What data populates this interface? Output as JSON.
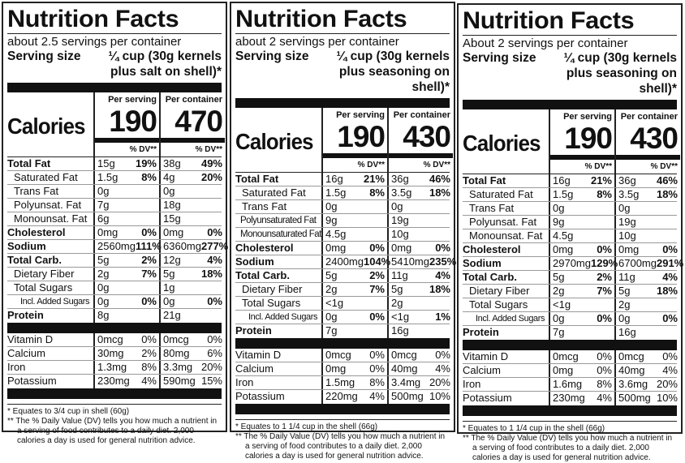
{
  "labels": [
    {
      "title": "Nutrition Facts",
      "servings": "about 2.5 servings per container",
      "serving_size_label": "Serving size",
      "serving_size_value": "¼ cup (30g kernels plus salt on shell)*",
      "calories_label": "Calories",
      "per_serving_label": "Per serving",
      "per_container_label": "Per container",
      "calories_serving": "190",
      "calories_container": "470",
      "dv_label": "% DV**",
      "rows": [
        {
          "name": "Total Fat",
          "style": "b",
          "s": "15g",
          "sp": "19%",
          "c": "38g",
          "cp": "49%"
        },
        {
          "name": "Saturated Fat",
          "style": "i1",
          "s": "1.5g",
          "sp": "8%",
          "c": "4g",
          "cp": "20%"
        },
        {
          "name": "Trans Fat",
          "style": "i1",
          "s": "0g",
          "sp": "",
          "c": "0g",
          "cp": ""
        },
        {
          "name": "Polyunsat. Fat",
          "style": "i1",
          "s": "7g",
          "sp": "",
          "c": "18g",
          "cp": ""
        },
        {
          "name": "Monounsat. Fat",
          "style": "i1",
          "s": "6g",
          "sp": "",
          "c": "15g",
          "cp": ""
        },
        {
          "name": "Cholesterol",
          "style": "b",
          "s": "0mg",
          "sp": "0%",
          "c": "0mg",
          "cp": "0%"
        },
        {
          "name": "Sodium",
          "style": "b",
          "s": "2560mg",
          "sp": "111%",
          "c": "6360mg",
          "cp": "277%"
        },
        {
          "name": "Total Carb.",
          "style": "b",
          "s": "5g",
          "sp": "2%",
          "c": "12g",
          "cp": "4%"
        },
        {
          "name": "Dietary Fiber",
          "style": "i1",
          "s": "2g",
          "sp": "7%",
          "c": "5g",
          "cp": "18%"
        },
        {
          "name": "Total Sugars",
          "style": "i1",
          "s": "0g",
          "sp": "",
          "c": "1g",
          "cp": ""
        },
        {
          "name": "Incl. Added Sugars",
          "style": "i2",
          "s": "0g",
          "sp": "0%",
          "c": "0g",
          "cp": "0%"
        },
        {
          "name": "Protein",
          "style": "b",
          "s": "8g",
          "sp": "",
          "c": "21g",
          "cp": ""
        }
      ],
      "vitamins": [
        {
          "name": "Vitamin D",
          "s": "0mcg",
          "sp": "0%",
          "c": "0mcg",
          "cp": "0%"
        },
        {
          "name": "Calcium",
          "s": "30mg",
          "sp": "2%",
          "c": "80mg",
          "cp": "6%"
        },
        {
          "name": "Iron",
          "s": "1.3mg",
          "sp": "8%",
          "c": "3.3mg",
          "cp": "20%"
        },
        {
          "name": "Potassium",
          "s": "230mg",
          "sp": "4%",
          "c": "590mg",
          "cp": "15%"
        }
      ],
      "footnote1": "* Equates to 3/4 cup in shell (60g)",
      "footnote2": "** The % Daily Value (DV) tells you how much a nutrient in a serving of food contributes to a daily diet. 2,000 calories a day is used for general nutrition advice."
    },
    {
      "title": "Nutrition Facts",
      "servings": "about 2 servings per container",
      "serving_size_label": "Serving size",
      "serving_size_value": "¼ cup (30g kernels plus seasoning on shell)*",
      "calories_label": "Calories",
      "per_serving_label": "Per serving",
      "per_container_label": "Per container",
      "calories_serving": "190",
      "calories_container": "430",
      "dv_label": "% DV**",
      "rows": [
        {
          "name": "Total Fat",
          "style": "b",
          "s": "16g",
          "sp": "21%",
          "c": "36g",
          "cp": "46%"
        },
        {
          "name": "Saturated Fat",
          "style": "i1",
          "s": "1.5g",
          "sp": "8%",
          "c": "3.5g",
          "cp": "18%"
        },
        {
          "name": "Trans Fat",
          "style": "i1",
          "s": "0g",
          "sp": "",
          "c": "0g",
          "cp": ""
        },
        {
          "name": "Polyunsaturated Fat",
          "style": "sq",
          "s": "9g",
          "sp": "",
          "c": "19g",
          "cp": ""
        },
        {
          "name": "Monounsaturated Fat",
          "style": "sq",
          "s": "4.5g",
          "sp": "",
          "c": "10g",
          "cp": ""
        },
        {
          "name": "Cholesterol",
          "style": "b",
          "s": "0mg",
          "sp": "0%",
          "c": "0mg",
          "cp": "0%"
        },
        {
          "name": "Sodium",
          "style": "b",
          "s": "2400mg",
          "sp": "104%",
          "c": "5410mg",
          "cp": "235%"
        },
        {
          "name": "Total Carb.",
          "style": "b",
          "s": "5g",
          "sp": "2%",
          "c": "11g",
          "cp": "4%"
        },
        {
          "name": "Dietary Fiber",
          "style": "i1",
          "s": "2g",
          "sp": "7%",
          "c": "5g",
          "cp": "18%"
        },
        {
          "name": "Total Sugars",
          "style": "i1",
          "s": "<1g",
          "sp": "",
          "c": "2g",
          "cp": ""
        },
        {
          "name": "Incl. Added Sugars",
          "style": "i2",
          "s": "0g",
          "sp": "0%",
          "c": "<1g",
          "cp": "1%"
        },
        {
          "name": "Protein",
          "style": "b",
          "s": "7g",
          "sp": "",
          "c": "16g",
          "cp": ""
        }
      ],
      "vitamins": [
        {
          "name": "Vitamin D",
          "s": "0mcg",
          "sp": "0%",
          "c": "0mcg",
          "cp": "0%"
        },
        {
          "name": "Calcium",
          "s": "0mg",
          "sp": "0%",
          "c": "40mg",
          "cp": "4%"
        },
        {
          "name": "Iron",
          "s": "1.5mg",
          "sp": "8%",
          "c": "3.4mg",
          "cp": "20%"
        },
        {
          "name": "Potassium",
          "s": "220mg",
          "sp": "4%",
          "c": "500mg",
          "cp": "10%"
        }
      ],
      "footnote1": "* Equates to 1 1/4 cup in the shell (66g)",
      "footnote2": "** The % Daily Value (DV) tells you how much a nutrient in a serving of food contributes to a daily diet. 2,000 calories a day is used for general nutrition advice."
    },
    {
      "title": "Nutrition Facts",
      "servings": "About 2 servings per container",
      "serving_size_label": "Serving size",
      "serving_size_value": "¼ cup (30g kernels plus seasoning on shell)*",
      "calories_label": "Calories",
      "per_serving_label": "Per serving",
      "per_container_label": "Per container",
      "calories_serving": "190",
      "calories_container": "430",
      "dv_label": "% DV**",
      "rows": [
        {
          "name": "Total Fat",
          "style": "b",
          "s": "16g",
          "sp": "21%",
          "c": "36g",
          "cp": "46%"
        },
        {
          "name": "Saturated Fat",
          "style": "i1",
          "s": "1.5g",
          "sp": "8%",
          "c": "3.5g",
          "cp": "18%"
        },
        {
          "name": "Trans Fat",
          "style": "i1",
          "s": "0g",
          "sp": "",
          "c": "0g",
          "cp": ""
        },
        {
          "name": "Polyunsat. Fat",
          "style": "i1",
          "s": "9g",
          "sp": "",
          "c": "19g",
          "cp": ""
        },
        {
          "name": "Monounsat. Fat",
          "style": "i1",
          "s": "4.5g",
          "sp": "",
          "c": "10g",
          "cp": ""
        },
        {
          "name": "Cholesterol",
          "style": "b",
          "s": "0mg",
          "sp": "0%",
          "c": "0mg",
          "cp": "0%"
        },
        {
          "name": "Sodium",
          "style": "b",
          "s": "2970mg",
          "sp": "129%",
          "c": "6700mg",
          "cp": "291%"
        },
        {
          "name": "Total Carb.",
          "style": "b",
          "s": "5g",
          "sp": "2%",
          "c": "11g",
          "cp": "4%"
        },
        {
          "name": "Dietary Fiber",
          "style": "i1",
          "s": "2g",
          "sp": "7%",
          "c": "5g",
          "cp": "18%"
        },
        {
          "name": "Total Sugars",
          "style": "i1",
          "s": "<1g",
          "sp": "",
          "c": "2g",
          "cp": ""
        },
        {
          "name": "Incl. Added Sugars",
          "style": "i2",
          "s": "0g",
          "sp": "0%",
          "c": "0g",
          "cp": "0%"
        },
        {
          "name": "Protein",
          "style": "b",
          "s": "7g",
          "sp": "",
          "c": "16g",
          "cp": ""
        }
      ],
      "vitamins": [
        {
          "name": "Vitamin D",
          "s": "0mcg",
          "sp": "0%",
          "c": "0mcg",
          "cp": "0%"
        },
        {
          "name": "Calcium",
          "s": "0mg",
          "sp": "0%",
          "c": "40mg",
          "cp": "4%"
        },
        {
          "name": "Iron",
          "s": "1.6mg",
          "sp": "8%",
          "c": "3.6mg",
          "cp": "20%"
        },
        {
          "name": "Potassium",
          "s": "230mg",
          "sp": "4%",
          "c": "500mg",
          "cp": "10%"
        }
      ],
      "footnote1": "* Equates to 1 1/4 cup in the shell (66g)",
      "footnote2": "** The % Daily Value (DV) tells you how much a nutrient in a serving of food contributes to a daily diet. 2,000 calories a day is used for general nutrition advice."
    }
  ]
}
